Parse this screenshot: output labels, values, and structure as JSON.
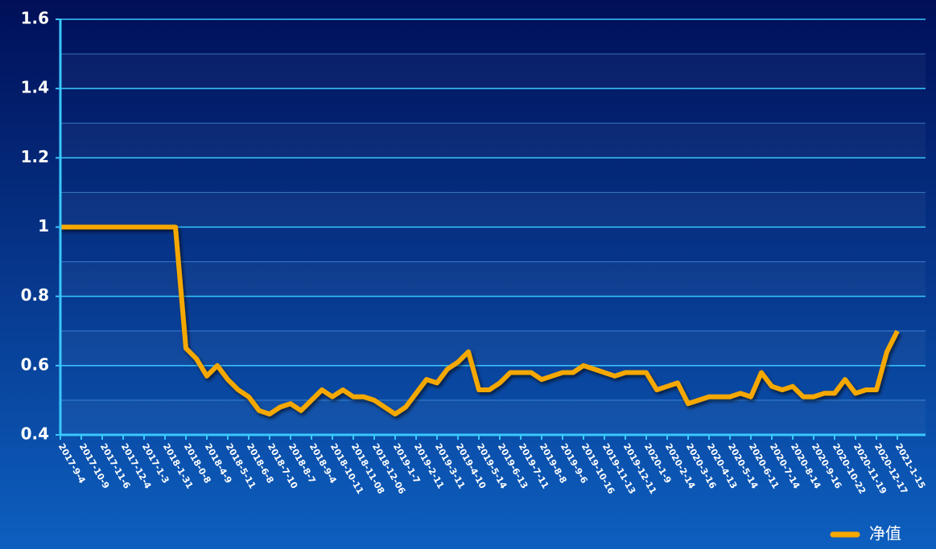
{
  "chart_data": {
    "type": "line",
    "categories": [
      "2017-9-4",
      null,
      "2017-10-9",
      null,
      "2017-11-6",
      null,
      "2017-12-4",
      null,
      "2017-1-3",
      null,
      "2018-1-31",
      null,
      "2018-0-8",
      null,
      "2018-4-9",
      null,
      "2018-5-11",
      null,
      "2018-6-8",
      null,
      "2018-7-10",
      null,
      "2018-8-7",
      null,
      "2018-9-4",
      null,
      "2018-10-11",
      null,
      "2018-11-08",
      null,
      "2018-12-06",
      null,
      "2019-1-7",
      null,
      "2019-2-11",
      null,
      "2019-3-11",
      null,
      "2019-4-10",
      null,
      "2019-5-14",
      null,
      "2019-6-13",
      null,
      "2019-7-11",
      null,
      "2019-8-8",
      null,
      "2019-9-6",
      null,
      "2019-10-16",
      null,
      "2019-11-13",
      null,
      "2019-12-11",
      null,
      "2020-1-9",
      null,
      "2020-2-14",
      null,
      "2020-3-16",
      null,
      "2020-4-13",
      null,
      "2020-5-14",
      null,
      "2020-6-11",
      null,
      "2020-7-14",
      null,
      "2020-8-14",
      null,
      "2020-9-16",
      null,
      "2020-10-22",
      null,
      "2020-11-19",
      null,
      "2020-12-17",
      null,
      "2021-1-15"
    ],
    "series": [
      {
        "name": "净值",
        "color": "#f5a800",
        "values": [
          1,
          1,
          1,
          1,
          1,
          1,
          1,
          1,
          1,
          1,
          1,
          1,
          0.65,
          0.62,
          0.57,
          0.6,
          0.56,
          0.53,
          0.51,
          0.47,
          0.46,
          0.48,
          0.49,
          0.47,
          0.5,
          0.53,
          0.51,
          0.53,
          0.51,
          0.51,
          0.5,
          0.48,
          0.46,
          0.48,
          0.52,
          0.56,
          0.55,
          0.59,
          0.61,
          0.64,
          0.53,
          0.53,
          0.55,
          0.58,
          0.58,
          0.58,
          0.56,
          0.57,
          0.58,
          0.58,
          0.6,
          0.59,
          0.58,
          0.57,
          0.58,
          0.58,
          0.58,
          0.53,
          0.54,
          0.55,
          0.49,
          0.5,
          0.51,
          0.51,
          0.51,
          0.52,
          0.51,
          0.58,
          0.54,
          0.53,
          0.54,
          0.51,
          0.51,
          0.52,
          0.52,
          0.56,
          0.52,
          0.53,
          0.53,
          0.64,
          0.7
        ]
      }
    ],
    "ylim": [
      0.4,
      1.6
    ],
    "yticks": [
      0.4,
      0.6,
      0.8,
      1,
      1.2,
      1.4,
      1.6
    ],
    "grid": true,
    "legend": "bottom-right"
  }
}
